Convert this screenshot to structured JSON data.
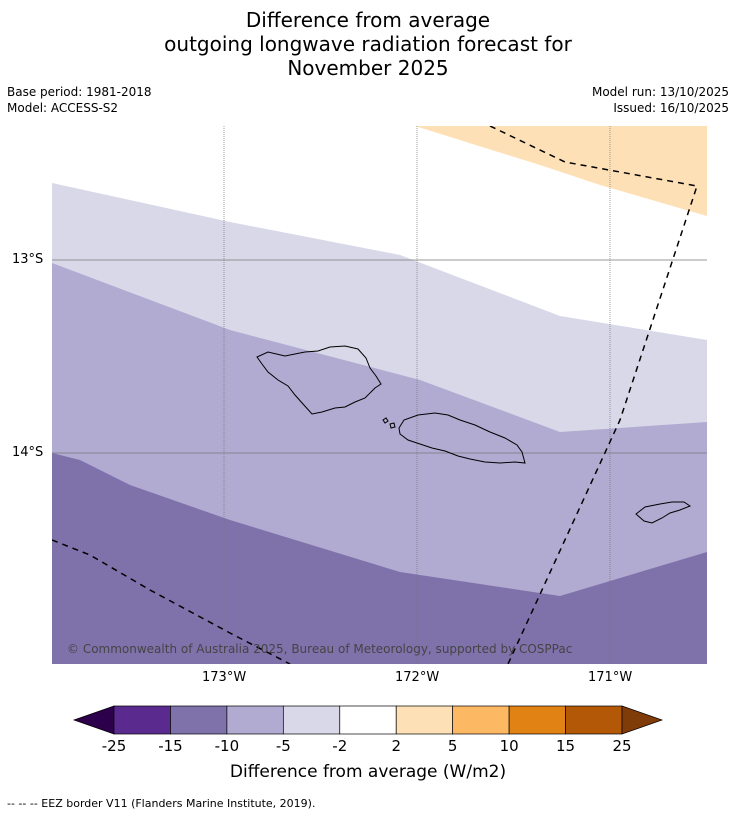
{
  "title_lines": [
    "Difference from average",
    "outgoing longwave radiation forecast for",
    "November 2025"
  ],
  "base_period": "Base period: 1981-2018",
  "model": "Model: ACCESS-S2",
  "model_run": "Model run: 13/10/2025",
  "issued": "Issued: 16/10/2025",
  "lat_labels": [
    "13°S",
    "14°S"
  ],
  "lon_labels": [
    "173°W",
    "172°W",
    "171°W"
  ],
  "copyright": "© Commonwealth of Australia 2025, Bureau of Meteorology, supported by COSPPac",
  "colorbar": {
    "title": "Difference from average (W/m2)",
    "ticks": [
      "-25",
      "-15",
      "-10",
      "-5",
      "-2",
      "2",
      "5",
      "10",
      "15",
      "25"
    ],
    "colors": [
      "#5b2a8f",
      "#7f72ab",
      "#b1aad1",
      "#d8d8e9",
      "#ffffff",
      "#fde0b6",
      "#fdb863",
      "#e08214",
      "#b35806"
    ],
    "under_color": "#2d004b",
    "over_color": "#7f3b08"
  },
  "map_colors": {
    "band_neg_2_5": "#d8d8e9",
    "band_neg_5_10": "#b1aad1",
    "band_neg_10_15": "#7f72ab",
    "band_pos_2_5": "#fde0b6"
  },
  "footer": "--  --  -- EEZ border V11 (Flanders Marine Institute, 2019)."
}
